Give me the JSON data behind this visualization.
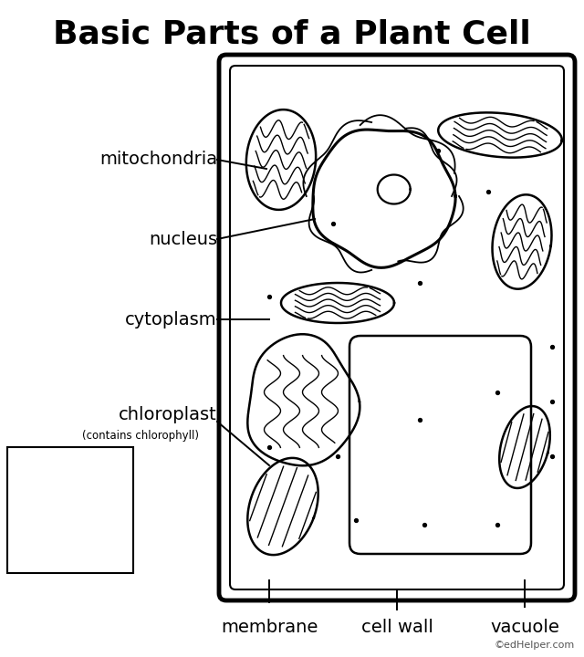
{
  "title": "Basic Parts of a Plant Cell",
  "title_fontsize": 26,
  "background_color": "#ffffff",
  "label_color": "#000000",
  "credit": "©edHelper.com",
  "word_list": [
    "cell wall",
    "chloroplast",
    "cytoplasm",
    "membrane",
    "mitochondria",
    "nucleus",
    "vacuole"
  ]
}
